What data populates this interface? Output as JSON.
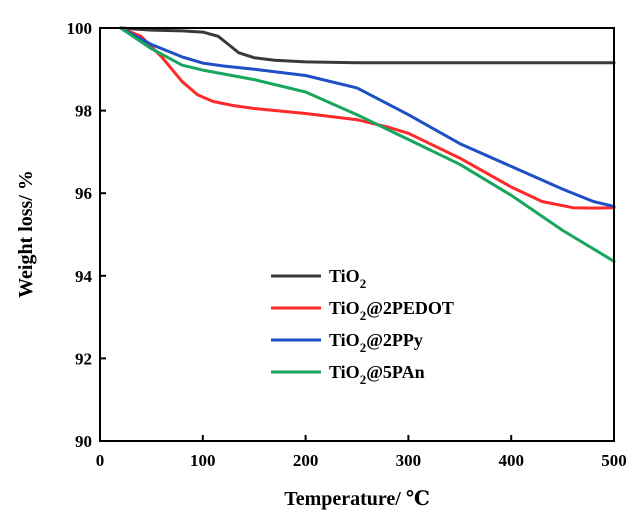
{
  "chart_data": {
    "type": "line",
    "xlabel": "Temperature/ ℃",
    "ylabel": "Weight loss/ %",
    "xlim": [
      0,
      500
    ],
    "ylim": [
      90,
      100
    ],
    "xticks": [
      0,
      100,
      200,
      300,
      400,
      500
    ],
    "yticks": [
      90,
      92,
      94,
      96,
      98,
      100
    ],
    "grid": false,
    "legend_position": "lower-center",
    "series": [
      {
        "name": "TiO2",
        "legend": {
          "base": "TiO",
          "sub": "2",
          "rest": ""
        },
        "color": "#3a3a3a",
        "points": [
          [
            20,
            100.0
          ],
          [
            50,
            99.95
          ],
          [
            80,
            99.93
          ],
          [
            100,
            99.9
          ],
          [
            115,
            99.8
          ],
          [
            125,
            99.6
          ],
          [
            135,
            99.4
          ],
          [
            150,
            99.28
          ],
          [
            170,
            99.22
          ],
          [
            200,
            99.18
          ],
          [
            250,
            99.16
          ],
          [
            300,
            99.16
          ],
          [
            400,
            99.16
          ],
          [
            500,
            99.16
          ]
        ]
      },
      {
        "name": "TiO2@2PEDOT",
        "legend": {
          "base": "TiO",
          "sub": "2",
          "rest": "@2PEDOT"
        },
        "color": "#ff2a2a",
        "points": [
          [
            20,
            100.0
          ],
          [
            40,
            99.8
          ],
          [
            60,
            99.3
          ],
          [
            80,
            98.7
          ],
          [
            95,
            98.38
          ],
          [
            110,
            98.22
          ],
          [
            130,
            98.12
          ],
          [
            150,
            98.05
          ],
          [
            200,
            97.93
          ],
          [
            250,
            97.78
          ],
          [
            280,
            97.6
          ],
          [
            300,
            97.45
          ],
          [
            350,
            96.85
          ],
          [
            400,
            96.15
          ],
          [
            430,
            95.8
          ],
          [
            460,
            95.65
          ],
          [
            480,
            95.64
          ],
          [
            500,
            95.65
          ]
        ]
      },
      {
        "name": "TiO2@2PPy",
        "legend": {
          "base": "TiO",
          "sub": "2",
          "rest": "@2PPy"
        },
        "color": "#1f4fc4",
        "points": [
          [
            20,
            100.0
          ],
          [
            50,
            99.6
          ],
          [
            80,
            99.3
          ],
          [
            100,
            99.15
          ],
          [
            120,
            99.08
          ],
          [
            150,
            99.0
          ],
          [
            200,
            98.85
          ],
          [
            250,
            98.55
          ],
          [
            300,
            97.9
          ],
          [
            350,
            97.2
          ],
          [
            400,
            96.65
          ],
          [
            450,
            96.1
          ],
          [
            480,
            95.8
          ],
          [
            500,
            95.68
          ]
        ]
      },
      {
        "name": "TiO2@5PAn",
        "legend": {
          "base": "TiO",
          "sub": "2",
          "rest": "@5PAn"
        },
        "color": "#16a65c",
        "points": [
          [
            20,
            100.0
          ],
          [
            50,
            99.5
          ],
          [
            80,
            99.1
          ],
          [
            100,
            98.98
          ],
          [
            150,
            98.75
          ],
          [
            200,
            98.45
          ],
          [
            250,
            97.9
          ],
          [
            300,
            97.3
          ],
          [
            350,
            96.7
          ],
          [
            400,
            95.95
          ],
          [
            450,
            95.1
          ],
          [
            500,
            94.35
          ]
        ]
      }
    ]
  }
}
